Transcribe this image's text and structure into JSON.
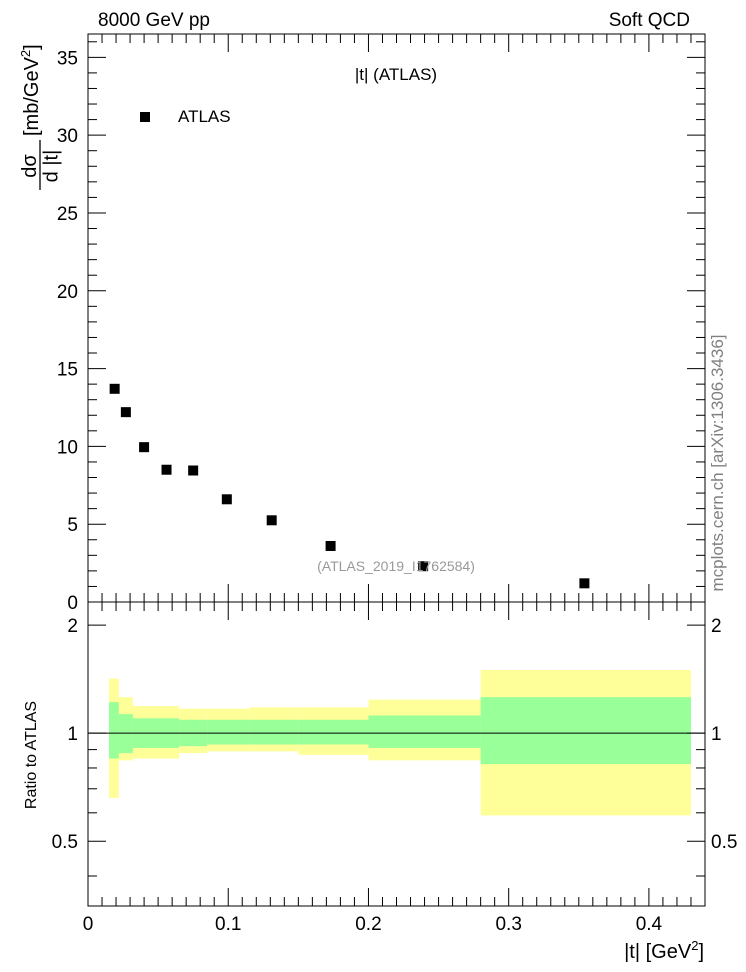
{
  "header": {
    "left": "8000 GeV pp",
    "right": "Soft QCD"
  },
  "side_credit": "mcplots.cern.ch [arXiv:1306.3436]",
  "chart_data": [
    {
      "type": "scatter",
      "title": "|t| (ATLAS)",
      "watermark": "(ATLAS_2019_I1762584)",
      "ylabel_fraction_top": "dσ",
      "ylabel_fraction_bottom": "d |t|",
      "ylabel_units": "[mb/GeV",
      "ylabel_sup": "2",
      "ylabel_close": "]",
      "legend": [
        {
          "label": "ATLAS",
          "marker": "square",
          "color": "#000000"
        }
      ],
      "legend_position": "top-left",
      "xlim": [
        0,
        0.44
      ],
      "ylim": [
        0,
        36.5
      ],
      "y_ticks": [
        0,
        5,
        10,
        15,
        20,
        25,
        30,
        35
      ],
      "y_tick_labels": [
        "0",
        "5",
        "10",
        "15",
        "20",
        "25",
        "30",
        "35"
      ],
      "series": [
        {
          "name": "ATLAS",
          "x": [
            0.019,
            0.027,
            0.04,
            0.056,
            0.075,
            0.099,
            0.131,
            0.173,
            0.239,
            0.354
          ],
          "y": [
            13.7,
            12.2,
            9.95,
            8.5,
            8.45,
            6.6,
            5.25,
            3.6,
            2.3,
            1.2
          ]
        }
      ]
    },
    {
      "type": "area",
      "ylabel": "Ratio to ATLAS",
      "xlabel": "|t| [GeV",
      "xlabel_sup": "2",
      "xlabel_close": "]",
      "xlim": [
        0,
        0.44
      ],
      "ylim": [
        0.33,
        2.32
      ],
      "x_ticks": [
        0,
        0.1,
        0.2,
        0.3,
        0.4
      ],
      "x_tick_labels": [
        "0",
        "0.1",
        "0.2",
        "0.3",
        "0.4"
      ],
      "y_ticks": [
        0.5,
        1,
        2
      ],
      "y_tick_labels": [
        "0.5",
        "1",
        "2"
      ],
      "reference_line": 1,
      "bands": {
        "colors": {
          "inner": "#99ff99",
          "outer": "#ffff99"
        },
        "bins": [
          {
            "lo": 0.015,
            "hi": 0.022,
            "inner": [
              0.85,
              1.22
            ],
            "outer": [
              0.66,
              1.42
            ]
          },
          {
            "lo": 0.022,
            "hi": 0.032,
            "inner": [
              0.88,
              1.13
            ],
            "outer": [
              0.84,
              1.26
            ]
          },
          {
            "lo": 0.032,
            "hi": 0.047,
            "inner": [
              0.91,
              1.1
            ],
            "outer": [
              0.85,
              1.19
            ]
          },
          {
            "lo": 0.047,
            "hi": 0.065,
            "inner": [
              0.91,
              1.1
            ],
            "outer": [
              0.85,
              1.19
            ]
          },
          {
            "lo": 0.065,
            "hi": 0.085,
            "inner": [
              0.92,
              1.09
            ],
            "outer": [
              0.88,
              1.17
            ]
          },
          {
            "lo": 0.085,
            "hi": 0.115,
            "inner": [
              0.93,
              1.09
            ],
            "outer": [
              0.89,
              1.17
            ]
          },
          {
            "lo": 0.115,
            "hi": 0.15,
            "inner": [
              0.93,
              1.09
            ],
            "outer": [
              0.89,
              1.18
            ]
          },
          {
            "lo": 0.15,
            "hi": 0.2,
            "inner": [
              0.93,
              1.09
            ],
            "outer": [
              0.87,
              1.18
            ]
          },
          {
            "lo": 0.2,
            "hi": 0.28,
            "inner": [
              0.91,
              1.12
            ],
            "outer": [
              0.84,
              1.24
            ]
          },
          {
            "lo": 0.28,
            "hi": 0.43,
            "inner": [
              0.82,
              1.26
            ],
            "outer": [
              0.59,
              1.5
            ]
          }
        ]
      }
    }
  ]
}
